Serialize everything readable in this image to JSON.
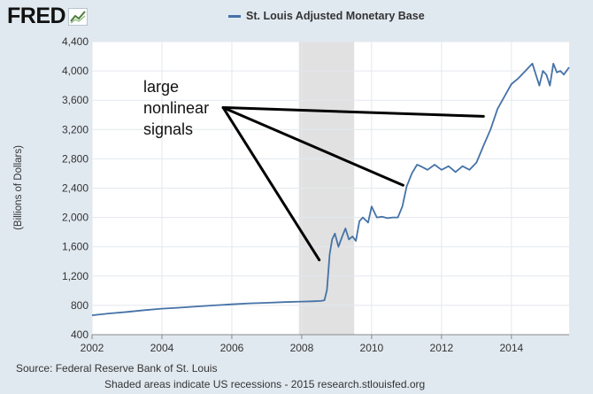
{
  "brand": {
    "text": "FRED",
    "icon": "fred-chart-logo-icon"
  },
  "chart_data": {
    "type": "line",
    "title": "",
    "legend": "top",
    "xlabel": "",
    "ylabel": "(Billions of Dollars)",
    "xlim": [
      2002.0,
      2015.65
    ],
    "ylim": [
      400,
      4400
    ],
    "x_ticks": [
      2002,
      2004,
      2006,
      2008,
      2010,
      2012,
      2014
    ],
    "x_tick_labels": [
      "2002",
      "2004",
      "2006",
      "2008",
      "2010",
      "2012",
      "2014"
    ],
    "y_ticks": [
      400,
      800,
      1200,
      1600,
      2000,
      2400,
      2800,
      3200,
      3600,
      4000,
      4400
    ],
    "y_tick_labels": [
      "400",
      "800",
      "1,200",
      "1,600",
      "2,000",
      "2,400",
      "2,800",
      "3,200",
      "3,600",
      "4,000",
      "4,400"
    ],
    "grid": true,
    "recessions": [
      [
        2007.92,
        2009.5
      ]
    ],
    "series": [
      {
        "name": "St. Louis Adjusted Monetary Base",
        "color": "#4572a7",
        "x": [
          2002.0,
          2002.5,
          2003.0,
          2003.5,
          2004.0,
          2004.5,
          2005.0,
          2005.5,
          2006.0,
          2006.5,
          2007.0,
          2007.5,
          2008.0,
          2008.3,
          2008.55,
          2008.65,
          2008.72,
          2008.8,
          2008.87,
          2008.95,
          2009.05,
          2009.15,
          2009.25,
          2009.35,
          2009.45,
          2009.55,
          2009.65,
          2009.75,
          2009.9,
          2010.0,
          2010.15,
          2010.3,
          2010.45,
          2010.6,
          2010.75,
          2010.88,
          2011.0,
          2011.15,
          2011.3,
          2011.4,
          2011.6,
          2011.8,
          2012.0,
          2012.2,
          2012.4,
          2012.6,
          2012.8,
          2013.0,
          2013.2,
          2013.4,
          2013.6,
          2013.8,
          2014.0,
          2014.2,
          2014.4,
          2014.6,
          2014.8,
          2014.9,
          2015.0,
          2015.1,
          2015.2,
          2015.3,
          2015.4,
          2015.5,
          2015.65
        ],
        "values": [
          665,
          690,
          710,
          735,
          755,
          768,
          785,
          800,
          815,
          828,
          835,
          845,
          852,
          855,
          860,
          870,
          1010,
          1500,
          1700,
          1780,
          1600,
          1730,
          1850,
          1700,
          1740,
          1680,
          1950,
          2000,
          1930,
          2150,
          2000,
          2010,
          1990,
          2000,
          2000,
          2150,
          2420,
          2600,
          2720,
          2700,
          2650,
          2720,
          2650,
          2700,
          2620,
          2700,
          2650,
          2750,
          2980,
          3200,
          3480,
          3650,
          3820,
          3900,
          4000,
          4100,
          3800,
          4000,
          3950,
          3800,
          4100,
          3980,
          4000,
          3950,
          4050
        ]
      }
    ],
    "annotation": {
      "lines": [
        "large",
        "nonlinear",
        "signals"
      ],
      "arrow_origin": [
        2005.75,
        3500
      ],
      "arrow_targets": [
        [
          2008.5,
          1420
        ],
        [
          2010.9,
          2440
        ],
        [
          2013.2,
          3380
        ]
      ]
    }
  },
  "footer": {
    "source": "Source: Federal Reserve Bank of St. Louis",
    "note": "Shaded areas indicate US recessions - 2015 research.stlouisfed.org"
  }
}
